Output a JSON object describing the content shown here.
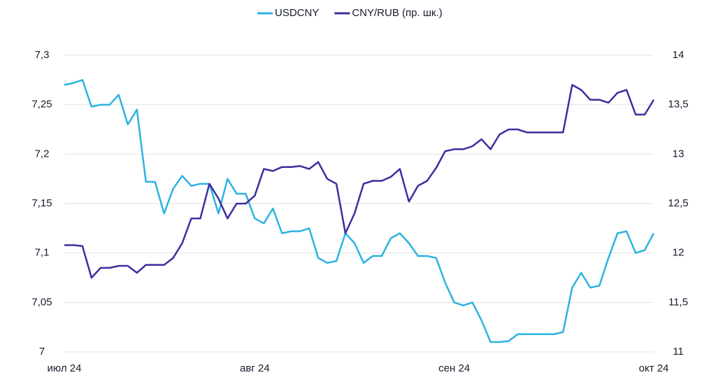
{
  "chart_data": {
    "type": "line",
    "categories": [
      "июл 24",
      null,
      null,
      null,
      null,
      null,
      null,
      null,
      null,
      null,
      null,
      null,
      null,
      null,
      null,
      null,
      null,
      null,
      null,
      null,
      null,
      "авг 24",
      null,
      null,
      null,
      null,
      null,
      null,
      null,
      null,
      null,
      null,
      null,
      null,
      null,
      null,
      null,
      null,
      null,
      null,
      null,
      null,
      null,
      "сен 24",
      null,
      null,
      null,
      null,
      null,
      null,
      null,
      null,
      null,
      null,
      null,
      null,
      null,
      null,
      null,
      null,
      null,
      null,
      null,
      null,
      null,
      "окт 24"
    ],
    "series": [
      {
        "name": "USDCNY",
        "color": "#2bb3e0",
        "axis": "y",
        "values": [
          7.27,
          7.272,
          7.275,
          7.248,
          7.25,
          7.25,
          7.26,
          7.23,
          7.245,
          7.172,
          7.172,
          7.14,
          7.165,
          7.178,
          7.168,
          7.17,
          7.17,
          7.14,
          7.175,
          7.16,
          7.16,
          7.135,
          7.13,
          7.145,
          7.12,
          7.122,
          7.122,
          7.125,
          7.095,
          7.09,
          7.092,
          7.12,
          7.11,
          7.09,
          7.097,
          7.097,
          7.115,
          7.12,
          7.11,
          7.097,
          7.097,
          7.095,
          7.07,
          7.05,
          7.047,
          7.05,
          7.032,
          7.01,
          7.01,
          7.011,
          7.018,
          7.018,
          7.018,
          7.018,
          7.018,
          7.02,
          7.065,
          7.08,
          7.065,
          7.067,
          7.095,
          7.12,
          7.122,
          7.1,
          7.103,
          7.12
        ]
      },
      {
        "name": "CNY/RUB (пр. шк.)",
        "color": "#3b2f9f",
        "axis": "y2",
        "values": [
          12.08,
          12.08,
          12.07,
          11.75,
          11.85,
          11.85,
          11.87,
          11.87,
          11.8,
          11.88,
          11.88,
          11.88,
          11.95,
          12.1,
          12.35,
          12.35,
          12.7,
          12.55,
          12.35,
          12.5,
          12.5,
          12.58,
          12.85,
          12.83,
          12.87,
          12.87,
          12.88,
          12.85,
          12.92,
          12.75,
          12.7,
          12.2,
          12.4,
          12.7,
          12.73,
          12.73,
          12.77,
          12.85,
          12.52,
          12.68,
          12.73,
          12.86,
          13.03,
          13.05,
          13.05,
          13.08,
          13.15,
          13.05,
          13.2,
          13.25,
          13.25,
          13.22,
          13.22,
          13.22,
          13.22,
          13.22,
          13.7,
          13.65,
          13.55,
          13.55,
          13.52,
          13.62,
          13.65,
          13.4,
          13.4,
          13.55
        ]
      }
    ],
    "ylim": [
      7,
      7.3
    ],
    "yticks": [
      7,
      {
        "value": 7.05,
        "label": "7,05"
      },
      {
        "value": 7.1,
        "label": "7,1"
      },
      {
        "value": 7.15,
        "label": "7,15"
      },
      {
        "value": 7.2,
        "label": "7,2"
      },
      {
        "value": 7.25,
        "label": "7,25"
      },
      {
        "value": 7.3,
        "label": "7,3"
      }
    ],
    "y2lim": [
      11,
      14
    ],
    "y2ticks": [
      11,
      {
        "value": 11.5,
        "label": "11,5"
      },
      12,
      {
        "value": 12.5,
        "label": "12,5"
      },
      13,
      {
        "value": 13.5,
        "label": "13,5"
      },
      14
    ],
    "grid": true,
    "legend": "top"
  }
}
